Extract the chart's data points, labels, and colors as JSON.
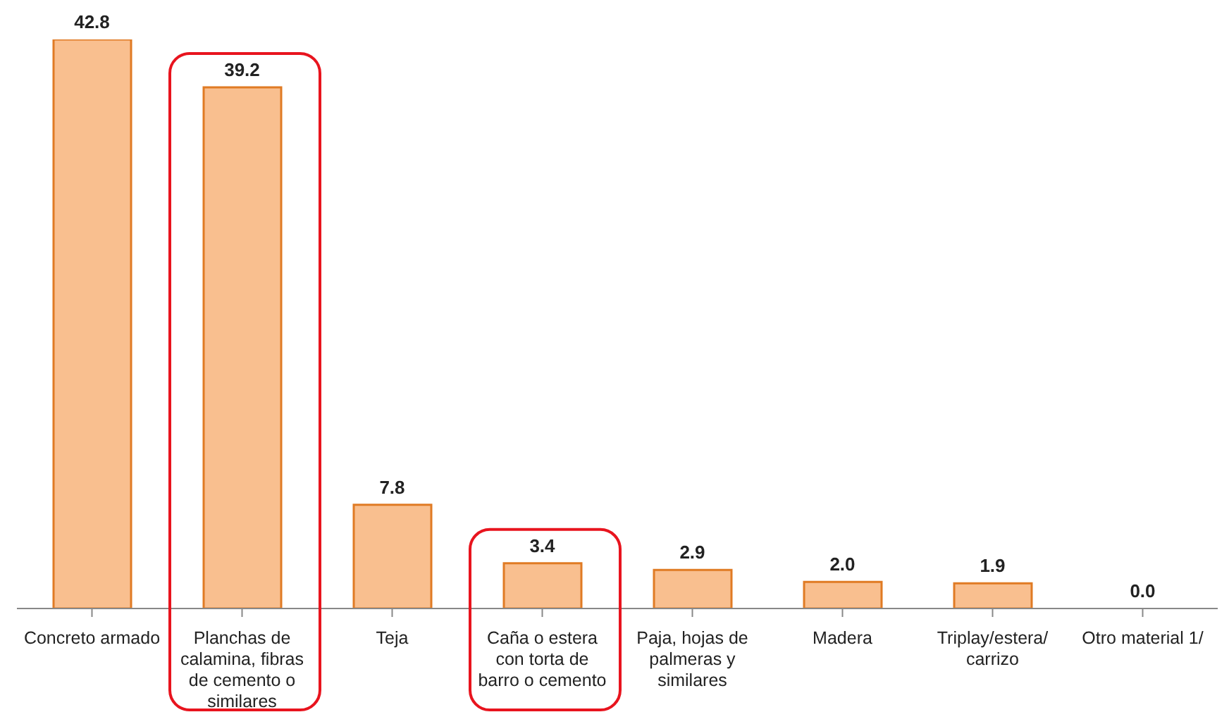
{
  "chart_data": {
    "type": "bar",
    "categories": [
      "Concreto armado",
      "Planchas de calamina, fibras de cemento o similares",
      "Teja",
      "Caña o estera con torta de barro o cemento",
      "Paja, hojas de palmeras y similares",
      "Madera",
      "Triplay/estera/carrizo",
      "Otro material 1/"
    ],
    "values": [
      42.8,
      39.2,
      7.8,
      3.4,
      2.9,
      2.0,
      1.9,
      0.0
    ],
    "value_labels": [
      "42.8",
      "39.2",
      "7.8",
      "3.4",
      "2.9",
      "2.0",
      "1.9",
      "0.0"
    ],
    "color": "#f9bf8f"
  }
}
